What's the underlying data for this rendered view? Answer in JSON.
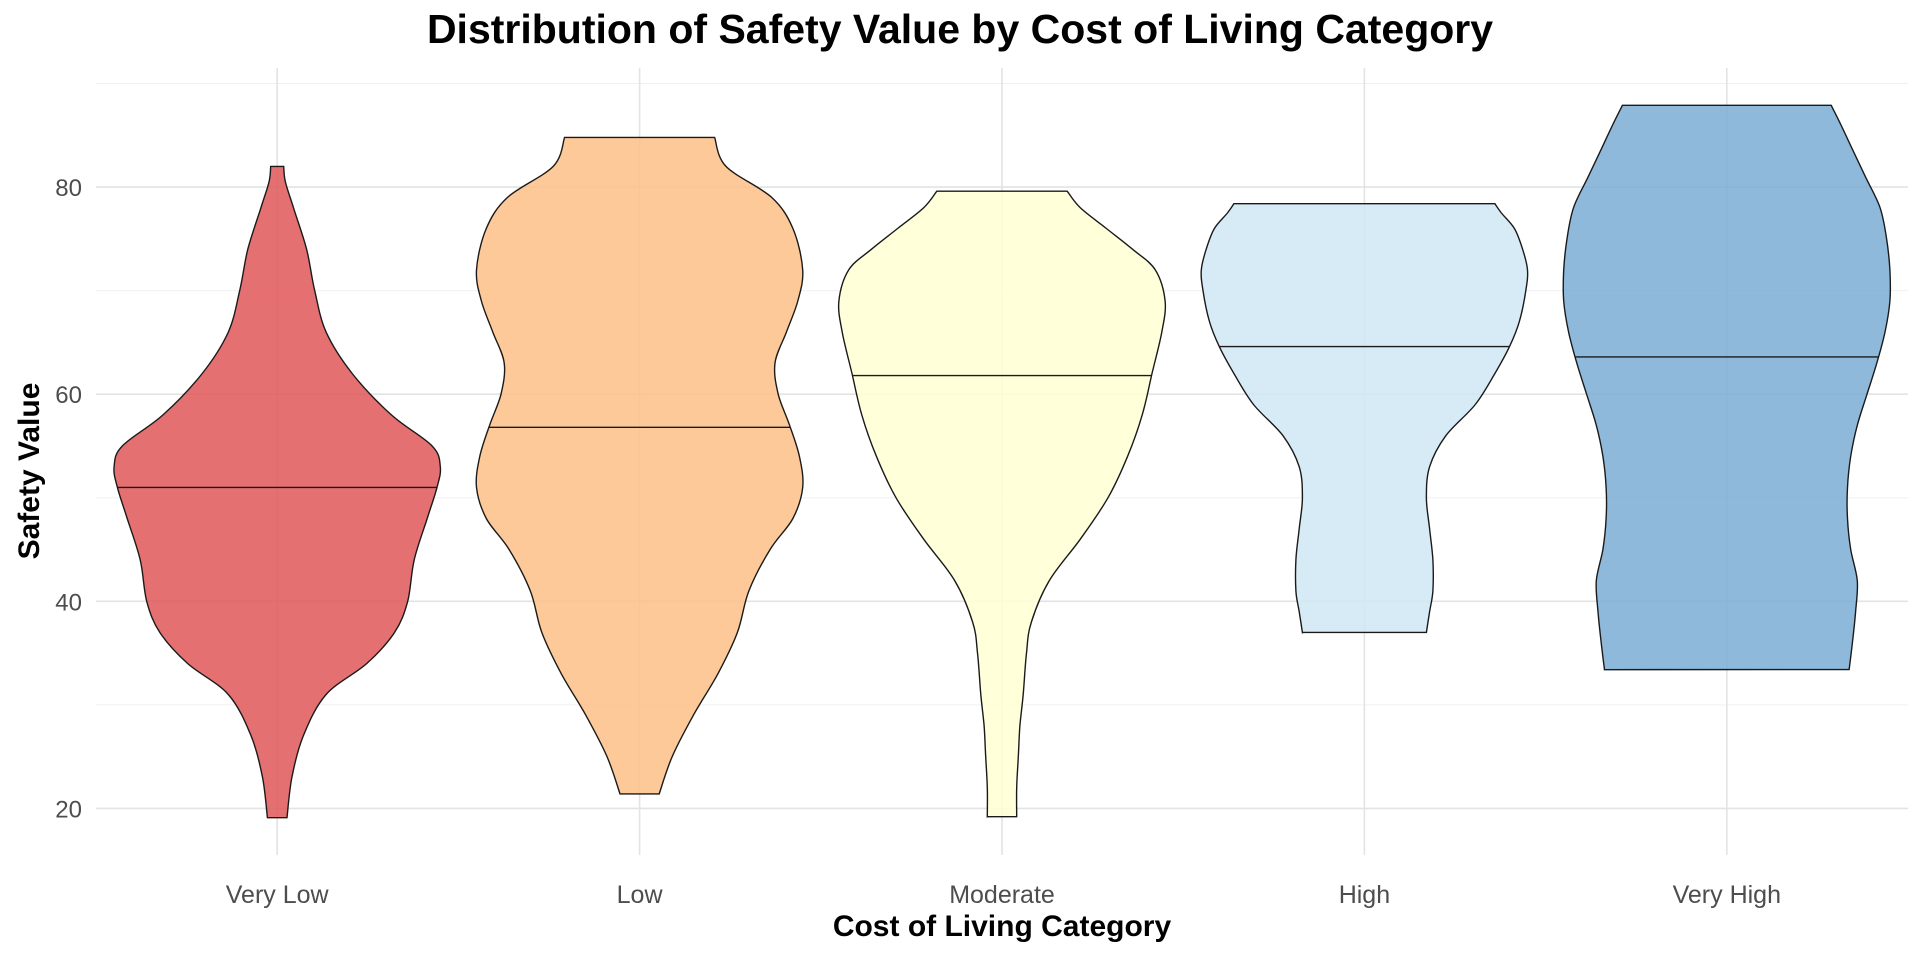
{
  "chart_data": {
    "type": "violin",
    "title": "Distribution of Safety Value by Cost of Living Category",
    "xlabel": "Cost of Living Category",
    "ylabel": "Safety Value",
    "ylim": [
      15.5,
      91.5
    ],
    "yticks": [
      20,
      40,
      60,
      80
    ],
    "grid": true,
    "legend": "none",
    "categories": [
      "Very Low",
      "Low",
      "Moderate",
      "High",
      "Very High"
    ],
    "series": [
      {
        "category": "Very Low",
        "color": "#e15759",
        "median": 51.0,
        "min": 19.1,
        "max": 82.0,
        "profile": [
          [
            19.1,
            0.06
          ],
          [
            23,
            0.09
          ],
          [
            27,
            0.16
          ],
          [
            31,
            0.3
          ],
          [
            34,
            0.55
          ],
          [
            37,
            0.72
          ],
          [
            40,
            0.8
          ],
          [
            44,
            0.84
          ],
          [
            48,
            0.92
          ],
          [
            51,
            0.98
          ],
          [
            53,
            1.0
          ],
          [
            55,
            0.95
          ],
          [
            58,
            0.7
          ],
          [
            62,
            0.46
          ],
          [
            66,
            0.3
          ],
          [
            70,
            0.23
          ],
          [
            74,
            0.18
          ],
          [
            78,
            0.1
          ],
          [
            80.5,
            0.05
          ],
          [
            82.0,
            0.04
          ]
        ]
      },
      {
        "category": "Low",
        "color": "#fdbf86",
        "median": 56.8,
        "min": 21.4,
        "max": 84.8,
        "profile": [
          [
            21.4,
            0.12
          ],
          [
            25,
            0.2
          ],
          [
            29,
            0.33
          ],
          [
            33,
            0.48
          ],
          [
            37,
            0.6
          ],
          [
            41,
            0.67
          ],
          [
            45,
            0.8
          ],
          [
            48,
            0.94
          ],
          [
            51,
            1.0
          ],
          [
            54,
            0.98
          ],
          [
            57,
            0.92
          ],
          [
            60,
            0.85
          ],
          [
            63,
            0.83
          ],
          [
            66,
            0.9
          ],
          [
            69,
            0.97
          ],
          [
            72,
            1.0
          ],
          [
            76,
            0.94
          ],
          [
            79,
            0.81
          ],
          [
            82,
            0.53
          ],
          [
            84.8,
            0.46
          ]
        ]
      },
      {
        "category": "Moderate",
        "color": "#ffffd4",
        "median": 61.8,
        "min": 19.2,
        "max": 79.6,
        "profile": [
          [
            19.2,
            0.09
          ],
          [
            22,
            0.09
          ],
          [
            25,
            0.1
          ],
          [
            28,
            0.11
          ],
          [
            31,
            0.13
          ],
          [
            35,
            0.15
          ],
          [
            38,
            0.18
          ],
          [
            42,
            0.29
          ],
          [
            46,
            0.48
          ],
          [
            50,
            0.65
          ],
          [
            54,
            0.77
          ],
          [
            58,
            0.86
          ],
          [
            62,
            0.92
          ],
          [
            66,
            0.98
          ],
          [
            69,
            1.0
          ],
          [
            72,
            0.94
          ],
          [
            74,
            0.8
          ],
          [
            76,
            0.64
          ],
          [
            78,
            0.48
          ],
          [
            79.6,
            0.4
          ]
        ]
      },
      {
        "category": "High",
        "color": "#cfe7f3",
        "median": 64.6,
        "min": 37.0,
        "max": 78.4,
        "profile": [
          [
            37.0,
            0.38
          ],
          [
            39,
            0.4
          ],
          [
            41,
            0.42
          ],
          [
            44,
            0.42
          ],
          [
            47,
            0.4
          ],
          [
            50,
            0.38
          ],
          [
            53,
            0.4
          ],
          [
            56,
            0.5
          ],
          [
            59,
            0.68
          ],
          [
            62,
            0.8
          ],
          [
            64.6,
            0.89
          ],
          [
            67,
            0.95
          ],
          [
            70,
            0.99
          ],
          [
            72,
            1.0
          ],
          [
            74,
            0.97
          ],
          [
            76,
            0.92
          ],
          [
            77.5,
            0.84
          ],
          [
            78.4,
            0.8
          ]
        ]
      },
      {
        "category": "Very High",
        "color": "#7aadd4",
        "median": 63.6,
        "min": 33.4,
        "max": 87.9,
        "profile": [
          [
            33.4,
            0.75
          ],
          [
            36,
            0.77
          ],
          [
            39,
            0.79
          ],
          [
            42,
            0.8
          ],
          [
            45,
            0.76
          ],
          [
            48,
            0.74
          ],
          [
            51,
            0.74
          ],
          [
            54,
            0.76
          ],
          [
            57,
            0.8
          ],
          [
            60,
            0.86
          ],
          [
            63,
            0.92
          ],
          [
            66,
            0.97
          ],
          [
            69,
            1.0
          ],
          [
            72,
            1.0
          ],
          [
            75,
            0.98
          ],
          [
            78,
            0.94
          ],
          [
            81,
            0.85
          ],
          [
            84,
            0.76
          ],
          [
            86,
            0.7
          ],
          [
            87.9,
            0.64
          ]
        ]
      }
    ]
  }
}
